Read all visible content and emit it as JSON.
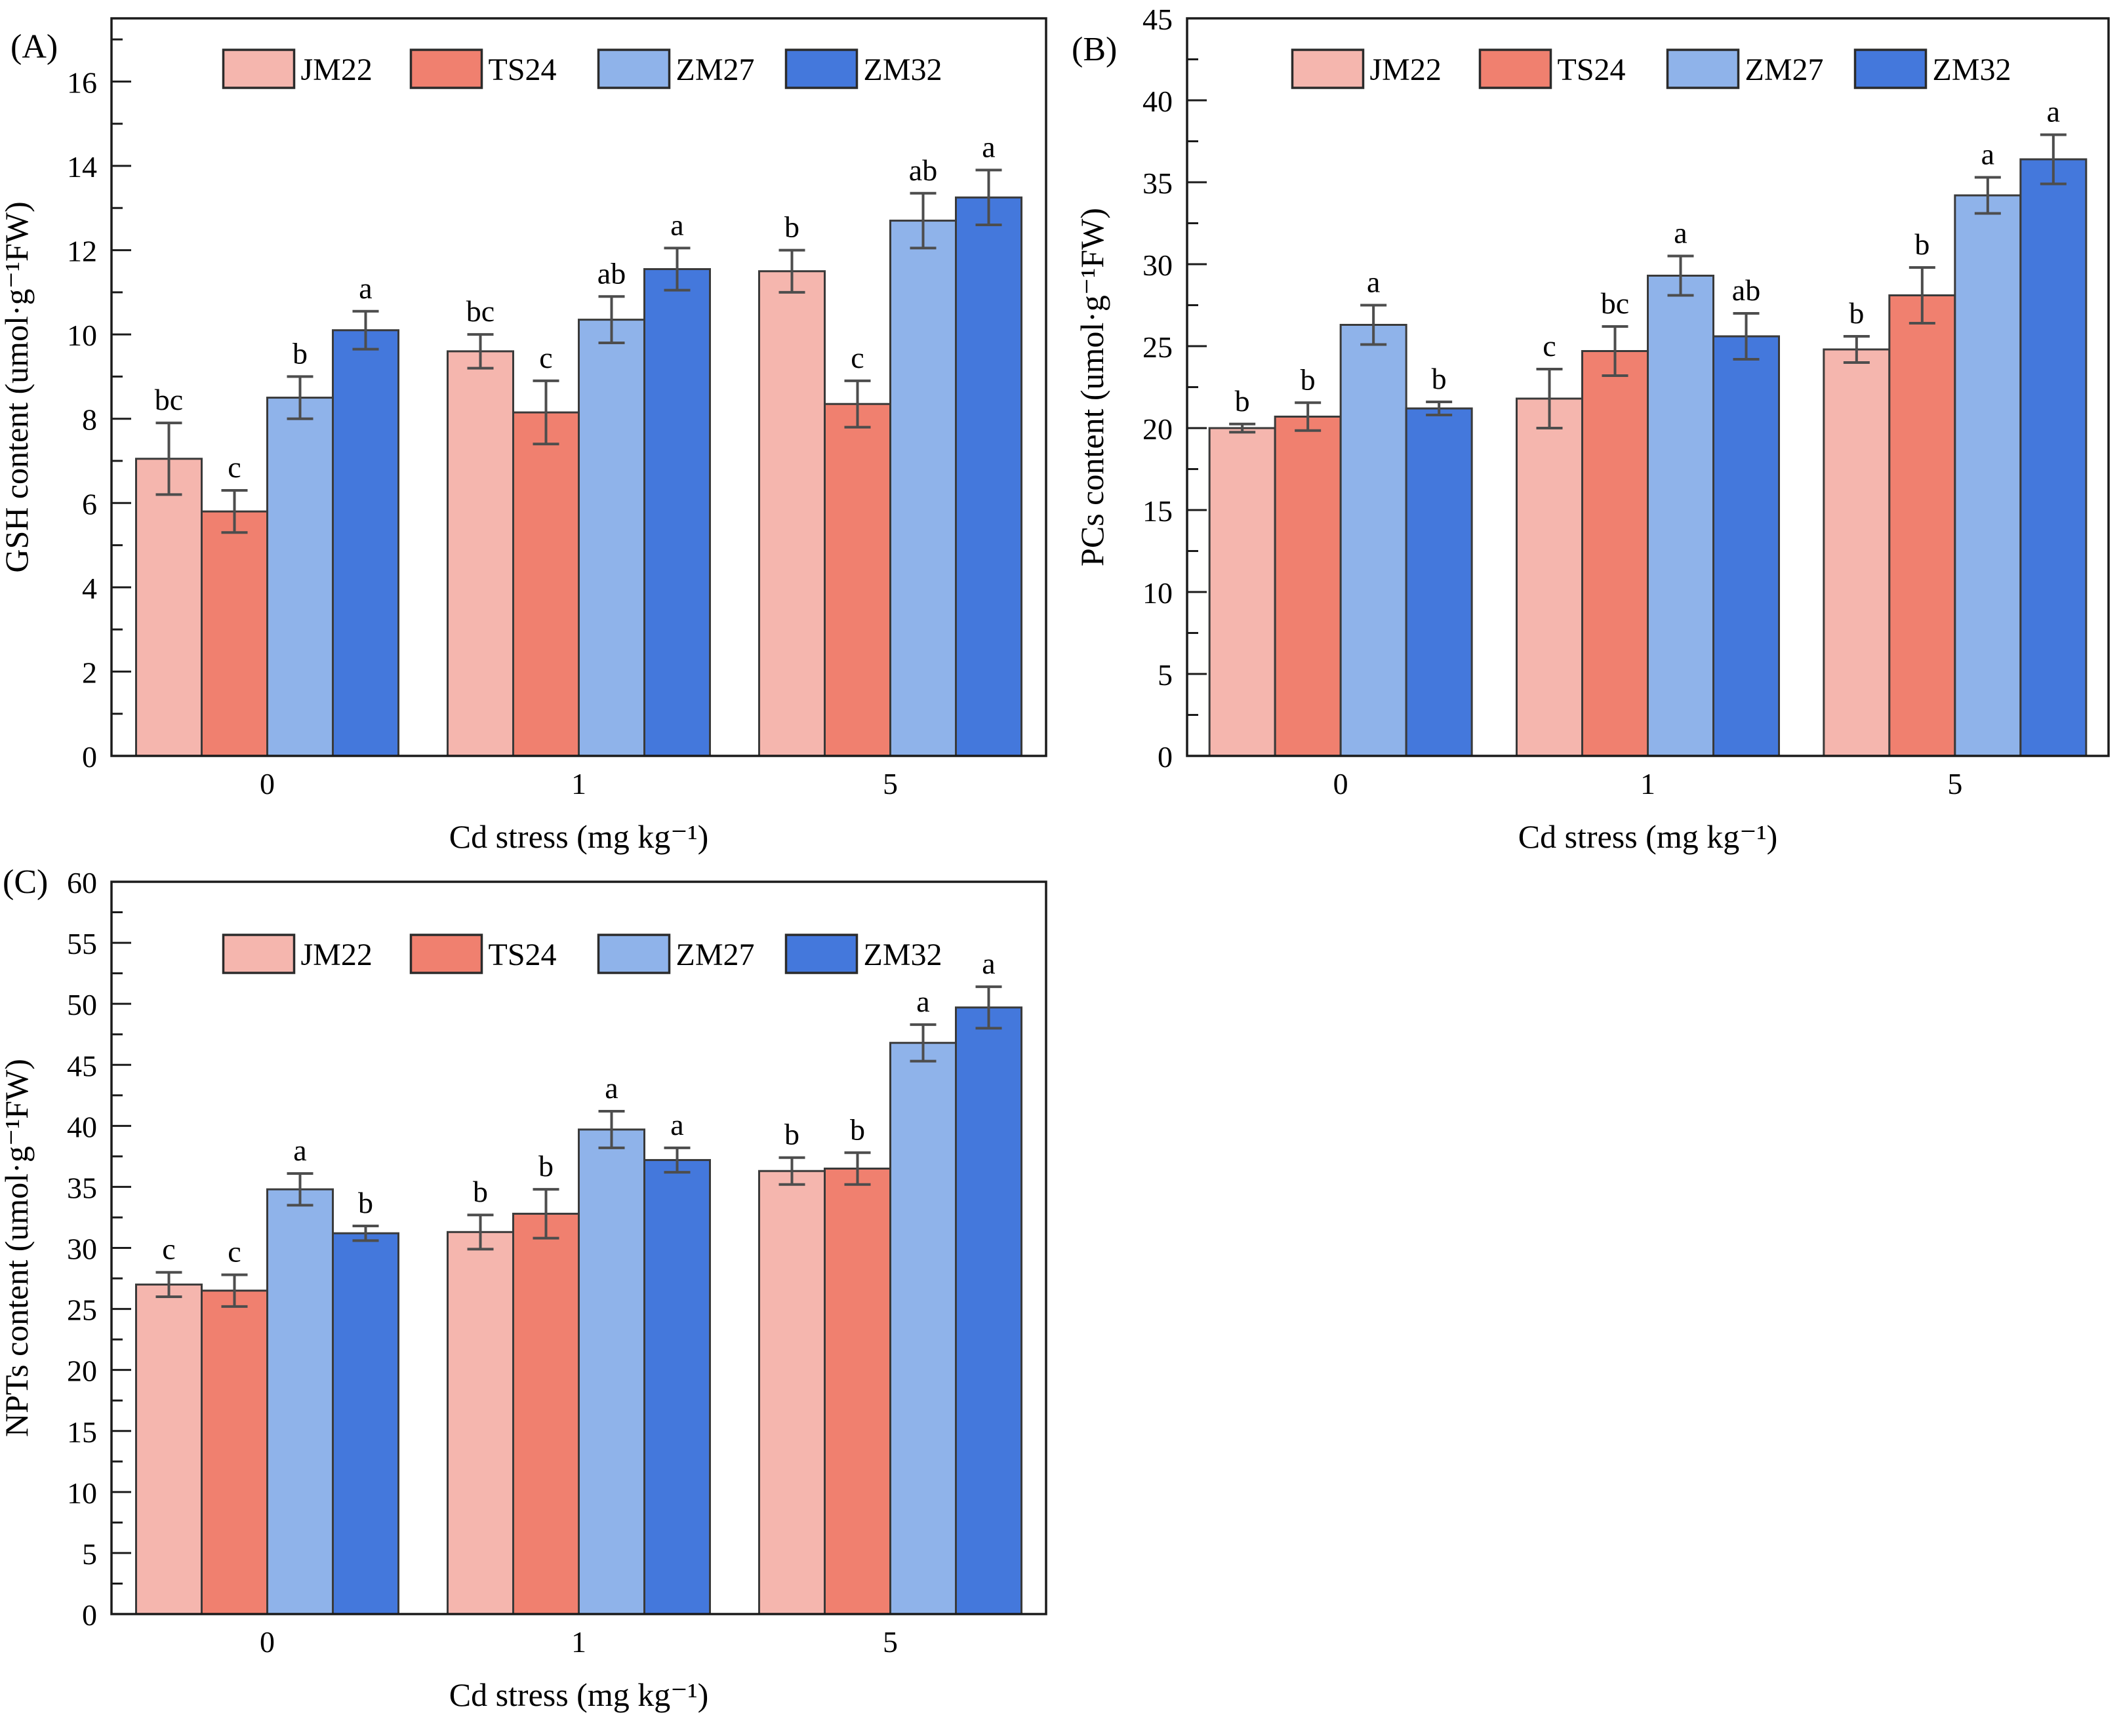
{
  "style": {
    "background": "#ffffff",
    "frame_color": "#1b1b1b",
    "bar_border_color": "#3a3a3a",
    "error_bar_color": "#4d4d4d",
    "text_color": "#000000",
    "series_colors": {
      "JM22": "#f5b6ae",
      "TS24": "#f0806f",
      "ZM27": "#8fb3ea",
      "ZM32": "#4478dc"
    }
  },
  "chart_data": [
    {
      "type": "bar",
      "panel_label": "(A)",
      "ylabel": "GSH content (umol·g⁻¹FW)",
      "xlabel": "Cd stress (mg kg⁻¹)",
      "categories": [
        "0",
        "1",
        "5"
      ],
      "ylim": [
        0,
        17.5
      ],
      "grid": false,
      "legend": {
        "position": "top-center-inside"
      },
      "yticks": {
        "labels": [
          "0",
          "2",
          "4",
          "6",
          "8",
          "10",
          "12",
          "14",
          "16"
        ],
        "major_step": 2,
        "minor_step": 1,
        "tick_top": 17
      },
      "series": [
        {
          "name": "JM22",
          "values": [
            7.05,
            9.6,
            11.5
          ],
          "errors": [
            0.85,
            0.4,
            0.5
          ],
          "letters": [
            "bc",
            "bc",
            "b"
          ]
        },
        {
          "name": "TS24",
          "values": [
            5.8,
            8.15,
            8.35
          ],
          "errors": [
            0.5,
            0.75,
            0.55
          ],
          "letters": [
            "c",
            "c",
            "c"
          ]
        },
        {
          "name": "ZM27",
          "values": [
            8.5,
            10.35,
            12.7
          ],
          "errors": [
            0.5,
            0.55,
            0.65
          ],
          "letters": [
            "b",
            "ab",
            "ab"
          ]
        },
        {
          "name": "ZM32",
          "values": [
            10.1,
            11.55,
            13.25
          ],
          "errors": [
            0.45,
            0.5,
            0.65
          ],
          "letters": [
            "a",
            "a",
            "a"
          ]
        }
      ]
    },
    {
      "type": "bar",
      "panel_label": "(B)",
      "ylabel": "PCs content (umol·g⁻¹FW)",
      "xlabel": "Cd stress (mg kg⁻¹)",
      "categories": [
        "0",
        "1",
        "5"
      ],
      "ylim": [
        0,
        45
      ],
      "grid": false,
      "legend": {
        "position": "top-center-inside"
      },
      "yticks": {
        "labels": [
          "0",
          "5",
          "10",
          "15",
          "20",
          "25",
          "30",
          "35",
          "40",
          "45"
        ],
        "major_step": 5,
        "minor_step": 2.5,
        "tick_top": 45
      },
      "series": [
        {
          "name": "JM22",
          "values": [
            20.0,
            21.8,
            24.8
          ],
          "errors": [
            0.25,
            1.8,
            0.8
          ],
          "letters": [
            "b",
            "c",
            "b"
          ]
        },
        {
          "name": "TS24",
          "values": [
            20.7,
            24.7,
            28.1
          ],
          "errors": [
            0.85,
            1.5,
            1.7
          ],
          "letters": [
            "b",
            "bc",
            "b"
          ]
        },
        {
          "name": "ZM27",
          "values": [
            26.3,
            29.3,
            34.2
          ],
          "errors": [
            1.2,
            1.2,
            1.1
          ],
          "letters": [
            "a",
            "a",
            "a"
          ]
        },
        {
          "name": "ZM32",
          "values": [
            21.2,
            25.6,
            36.4
          ],
          "errors": [
            0.4,
            1.4,
            1.5
          ],
          "letters": [
            "b",
            "ab",
            "a"
          ]
        }
      ]
    },
    {
      "type": "bar",
      "panel_label": "(C)",
      "ylabel": "NPTs content (umol·g⁻¹FW)",
      "xlabel": "Cd stress (mg kg⁻¹)",
      "categories": [
        "0",
        "1",
        "5"
      ],
      "ylim": [
        0,
        60
      ],
      "grid": false,
      "legend": {
        "position": "top-center-inside"
      },
      "yticks": {
        "labels": [
          "0",
          "5",
          "10",
          "15",
          "20",
          "25",
          "30",
          "35",
          "40",
          "45",
          "50",
          "55",
          "60"
        ],
        "major_step": 5,
        "minor_step": 2.5,
        "tick_top": 60
      },
      "series": [
        {
          "name": "JM22",
          "values": [
            27.0,
            31.3,
            36.3
          ],
          "errors": [
            1.0,
            1.4,
            1.1
          ],
          "letters": [
            "c",
            "b",
            "b"
          ]
        },
        {
          "name": "TS24",
          "values": [
            26.5,
            32.8,
            36.5
          ],
          "errors": [
            1.3,
            2.0,
            1.3
          ],
          "letters": [
            "c",
            "b",
            "b"
          ]
        },
        {
          "name": "ZM27",
          "values": [
            34.8,
            39.7,
            46.8
          ],
          "errors": [
            1.3,
            1.5,
            1.5
          ],
          "letters": [
            "a",
            "a",
            "a"
          ]
        },
        {
          "name": "ZM32",
          "values": [
            31.2,
            37.2,
            49.7
          ],
          "errors": [
            0.6,
            1.0,
            1.7
          ],
          "letters": [
            "b",
            "a",
            "a"
          ]
        }
      ]
    }
  ]
}
